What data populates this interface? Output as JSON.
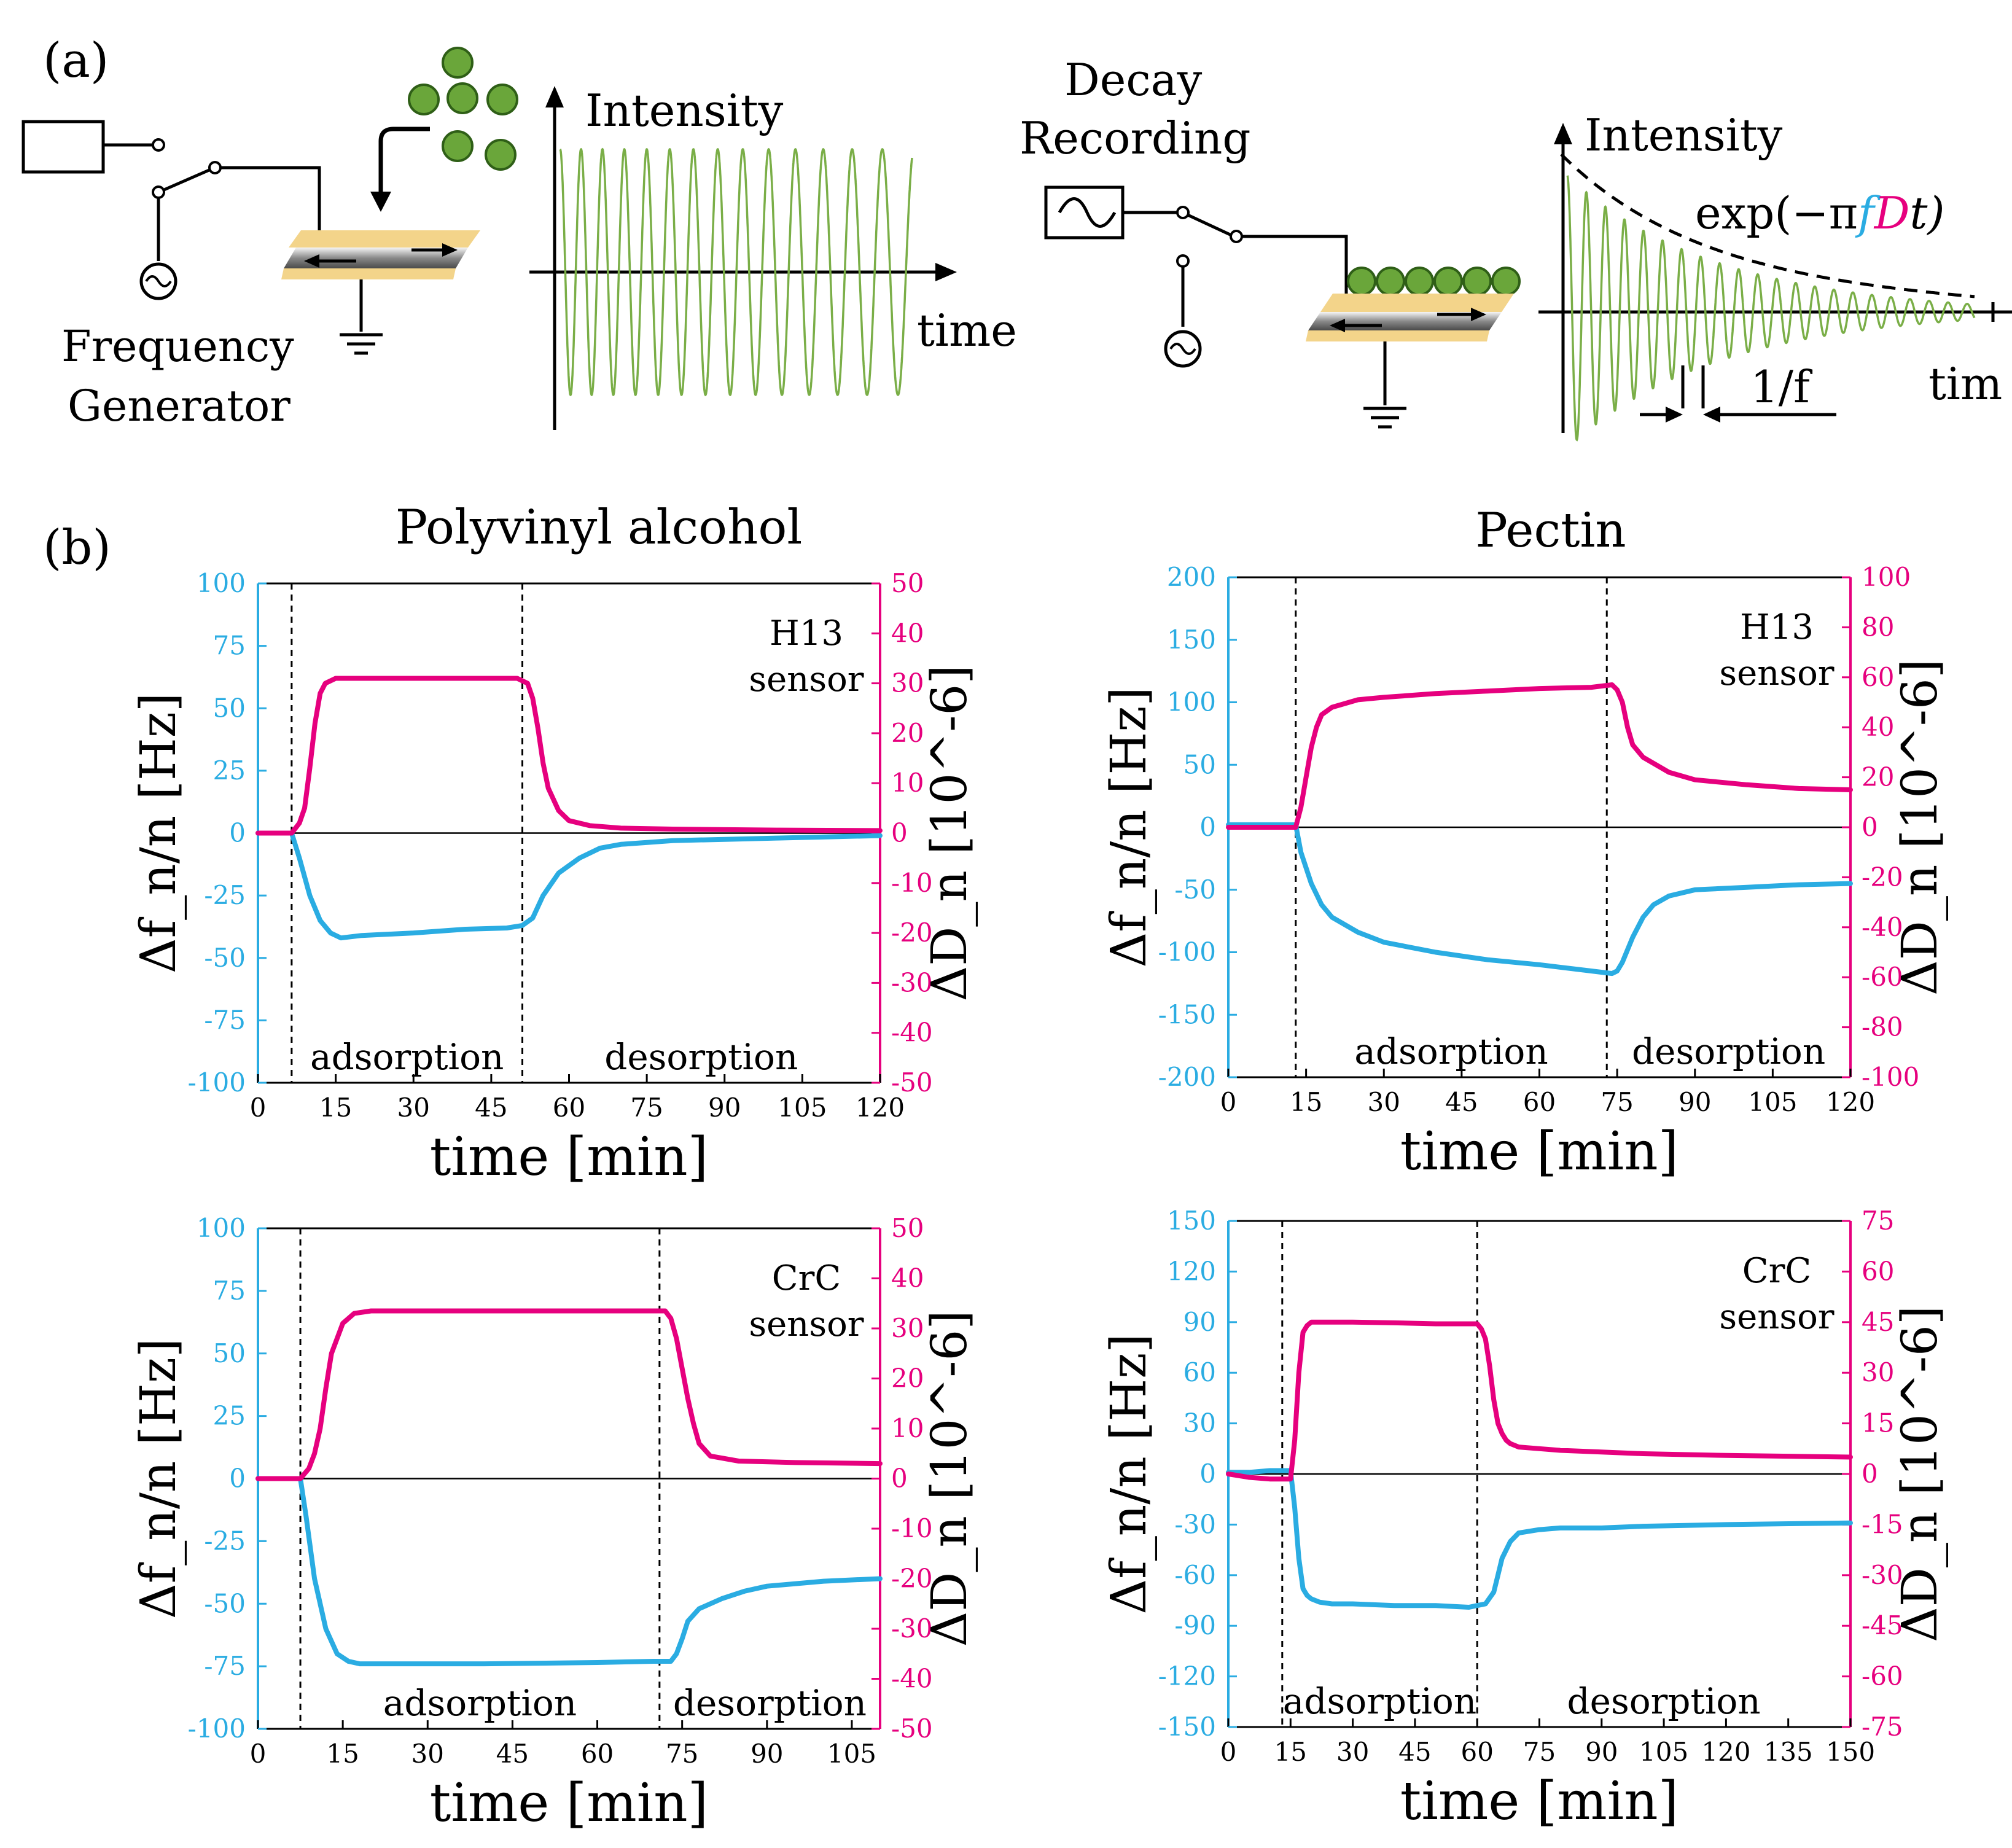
{
  "panel_a": {
    "label": "(a)",
    "generator_label_line1": "Frequency",
    "generator_label_line2": "Generator",
    "intensity_label": "Intensity",
    "time_label": "time",
    "decay_label_line1": "Decay",
    "decay_label_line2": "Recording",
    "intensity_label_2": "Intensity",
    "exp_prefix": "exp(−π",
    "exp_f": "f",
    "exp_D": "D",
    "exp_suffix": "t)",
    "period_label": "1/f",
    "time_label_2": "tim",
    "colors": {
      "wave": "#7aae47",
      "particle": "#6aa63a",
      "f": "#2aace2",
      "D": "#e6007e"
    }
  },
  "panel_b": {
    "label": "(b)",
    "col_title_left": "Polyvinyl alcohol",
    "col_title_right": "Pectin"
  },
  "chart_data": [
    {
      "type": "line",
      "title": "Polyvinyl alcohol",
      "sensor_line1": "H13",
      "sensor_line2": "sensor",
      "xlabel": "time [min]",
      "ylabel_left": "Δf_n/n [Hz]",
      "ylabel_right": "ΔD_n [10^-6]",
      "xlim": [
        0,
        120
      ],
      "ylim_left": [
        -100,
        100
      ],
      "ylim_right": [
        -50,
        50
      ],
      "xticks": [
        0,
        15,
        30,
        45,
        60,
        75,
        90,
        105,
        120
      ],
      "yticks_left": [
        -100,
        -75,
        -50,
        -25,
        0,
        25,
        50,
        75,
        100
      ],
      "yticks_right": [
        -50,
        -40,
        -30,
        -20,
        -10,
        0,
        10,
        20,
        30,
        40,
        50
      ],
      "phases": [
        {
          "label": "adsorption",
          "start": 6.5,
          "end": 51
        },
        {
          "label": "desorption",
          "start": 51,
          "end": 120
        }
      ],
      "series": [
        {
          "name": "Δf_n/n",
          "axis": "left",
          "color": "#2aace2",
          "x": [
            0,
            6.5,
            8,
            10,
            12,
            14,
            16,
            20,
            30,
            40,
            48,
            51,
            53,
            55,
            58,
            62,
            66,
            70,
            80,
            90,
            100,
            110,
            120
          ],
          "y": [
            0,
            0,
            -10,
            -25,
            -35,
            -40,
            -42,
            -41,
            -40,
            -38.5,
            -38,
            -37,
            -34,
            -25,
            -16,
            -10,
            -6,
            -4.5,
            -3,
            -2.5,
            -2,
            -1.5,
            -1
          ]
        },
        {
          "name": "ΔD_n",
          "axis": "right",
          "color": "#e6007e",
          "x": [
            0,
            6.5,
            8,
            9,
            10,
            11,
            12,
            13,
            15,
            20,
            30,
            40,
            50,
            52,
            53,
            54,
            55,
            56,
            58,
            60,
            64,
            70,
            80,
            100,
            120
          ],
          "y": [
            0,
            0,
            2,
            5,
            13,
            22,
            28,
            30,
            31,
            31,
            31,
            31,
            31,
            30,
            27,
            21,
            14,
            9,
            4.5,
            2.5,
            1.5,
            1,
            0.8,
            0.6,
            0.5
          ]
        }
      ]
    },
    {
      "type": "line",
      "title": "Pectin",
      "sensor_line1": "H13",
      "sensor_line2": "sensor",
      "xlabel": "time [min]",
      "ylabel_left": "Δf_n/n [Hz]",
      "ylabel_right": "ΔD_n [10^-6]",
      "xlim": [
        0,
        120
      ],
      "ylim_left": [
        -200,
        200
      ],
      "ylim_right": [
        -100,
        100
      ],
      "xticks": [
        0,
        15,
        30,
        45,
        60,
        75,
        90,
        105,
        120
      ],
      "yticks_left": [
        -200,
        -150,
        -100,
        -50,
        0,
        50,
        100,
        150,
        200
      ],
      "yticks_right": [
        -100,
        -80,
        -60,
        -40,
        -20,
        0,
        20,
        40,
        60,
        80,
        100
      ],
      "phases": [
        {
          "label": "adsorption",
          "start": 13,
          "end": 73
        },
        {
          "label": "desorption",
          "start": 73,
          "end": 120
        }
      ],
      "series": [
        {
          "name": "Δf_n/n",
          "axis": "left",
          "color": "#2aace2",
          "x": [
            0,
            13,
            14,
            16,
            18,
            20,
            25,
            30,
            40,
            50,
            60,
            70,
            74,
            75,
            76,
            78,
            80,
            82,
            85,
            90,
            100,
            110,
            120
          ],
          "y": [
            2,
            2,
            -20,
            -45,
            -62,
            -72,
            -84,
            -92,
            -100,
            -106,
            -110,
            -115,
            -117,
            -115,
            -108,
            -88,
            -72,
            -62,
            -55,
            -50,
            -48,
            -46,
            -45
          ]
        },
        {
          "name": "ΔD_n",
          "axis": "right",
          "color": "#e6007e",
          "x": [
            0,
            13,
            14,
            15,
            16,
            17,
            18,
            20,
            25,
            30,
            40,
            50,
            60,
            70,
            74,
            75,
            76,
            77,
            78,
            80,
            85,
            90,
            100,
            110,
            120
          ],
          "y": [
            0,
            0,
            8,
            20,
            32,
            40,
            45,
            48,
            51,
            52,
            53.5,
            54.5,
            55.5,
            56,
            57,
            55,
            50,
            40,
            33,
            28,
            22,
            19,
            17,
            15.5,
            15
          ]
        }
      ]
    },
    {
      "type": "line",
      "title": "Polyvinyl alcohol",
      "sensor_line1": "CrC",
      "sensor_line2": "sensor",
      "xlabel": "time [min]",
      "ylabel_left": "Δf_n/n [Hz]",
      "ylabel_right": "ΔD_n [10^-6]",
      "xlim": [
        0,
        110
      ],
      "ylim_left": [
        -100,
        100
      ],
      "ylim_right": [
        -50,
        50
      ],
      "xticks": [
        0,
        15,
        30,
        45,
        60,
        75,
        90,
        105
      ],
      "yticks_left": [
        -100,
        -75,
        -50,
        -25,
        0,
        25,
        50,
        75,
        100
      ],
      "yticks_right": [
        -50,
        -40,
        -30,
        -20,
        -10,
        0,
        10,
        20,
        30,
        40,
        50
      ],
      "phases": [
        {
          "label": "adsorption",
          "start": 7.5,
          "end": 71
        },
        {
          "label": "desorption",
          "start": 71,
          "end": 110
        }
      ],
      "series": [
        {
          "name": "Δf_n/n",
          "axis": "left",
          "color": "#2aace2",
          "x": [
            0,
            7.5,
            8.5,
            10,
            12,
            14,
            16,
            18,
            25,
            40,
            60,
            70,
            73,
            74,
            75,
            76,
            78,
            82,
            86,
            90,
            100,
            110
          ],
          "y": [
            0,
            0,
            -15,
            -40,
            -60,
            -70,
            -73,
            -74,
            -74,
            -74,
            -73.5,
            -73,
            -73,
            -70,
            -64,
            -57,
            -52,
            -48,
            -45,
            -43,
            -41,
            -40
          ]
        },
        {
          "name": "ΔD_n",
          "axis": "right",
          "color": "#e6007e",
          "x": [
            0,
            7.5,
            9,
            10,
            11,
            12,
            13,
            15,
            17,
            20,
            30,
            50,
            70,
            72,
            73,
            74,
            75,
            76,
            77,
            78,
            80,
            85,
            95,
            110
          ],
          "y": [
            0,
            0,
            2,
            5,
            10,
            18,
            25,
            31,
            33,
            33.5,
            33.5,
            33.5,
            33.5,
            33.5,
            32,
            28,
            22,
            16,
            11,
            7,
            4.5,
            3.5,
            3.2,
            3
          ]
        }
      ]
    },
    {
      "type": "line",
      "title": "Pectin",
      "sensor_line1": "CrC",
      "sensor_line2": "sensor",
      "xlabel": "time [min]",
      "ylabel_left": "Δf_n/n [Hz]",
      "ylabel_right": "ΔD_n [10^-6]",
      "xlim": [
        0,
        150
      ],
      "ylim_left": [
        -150,
        150
      ],
      "ylim_right": [
        -75,
        75
      ],
      "xticks": [
        0,
        15,
        30,
        45,
        60,
        75,
        90,
        105,
        120,
        135,
        150
      ],
      "yticks_left": [
        -150,
        -120,
        -90,
        -60,
        -30,
        0,
        30,
        60,
        90,
        120,
        150
      ],
      "yticks_right": [
        -75,
        -60,
        -45,
        -30,
        -15,
        0,
        15,
        30,
        45,
        60,
        75
      ],
      "phases": [
        {
          "label": "adsorption",
          "start": 13,
          "end": 60
        },
        {
          "label": "desorption",
          "start": 60,
          "end": 150
        }
      ],
      "series": [
        {
          "name": "Δf_n/n",
          "axis": "left",
          "color": "#2aace2",
          "x": [
            0,
            5,
            10,
            15,
            16,
            17,
            18,
            19,
            20,
            22,
            25,
            30,
            40,
            50,
            58,
            60,
            62,
            64,
            65,
            66,
            68,
            70,
            75,
            80,
            90,
            100,
            120,
            150
          ],
          "y": [
            1,
            1,
            2,
            2,
            -20,
            -50,
            -68,
            -72,
            -74,
            -76,
            -77,
            -77,
            -78,
            -78,
            -79,
            -78,
            -77,
            -70,
            -60,
            -50,
            -40,
            -35,
            -33,
            -32,
            -32,
            -31,
            -30,
            -29
          ]
        },
        {
          "name": "ΔD_n",
          "axis": "right",
          "color": "#e6007e",
          "x": [
            0,
            5,
            10,
            15,
            16,
            17,
            18,
            19,
            20,
            25,
            30,
            40,
            50,
            60,
            61,
            62,
            63,
            64,
            65,
            66,
            67,
            68,
            70,
            75,
            80,
            90,
            100,
            120,
            150
          ],
          "y": [
            0,
            -1,
            -1.5,
            -1.5,
            10,
            30,
            42,
            44,
            45,
            45,
            45,
            44.8,
            44.5,
            44.5,
            43,
            40,
            32,
            22,
            15,
            12,
            10,
            9,
            8,
            7.5,
            7,
            6.5,
            6,
            5.5,
            5
          ]
        }
      ]
    }
  ]
}
